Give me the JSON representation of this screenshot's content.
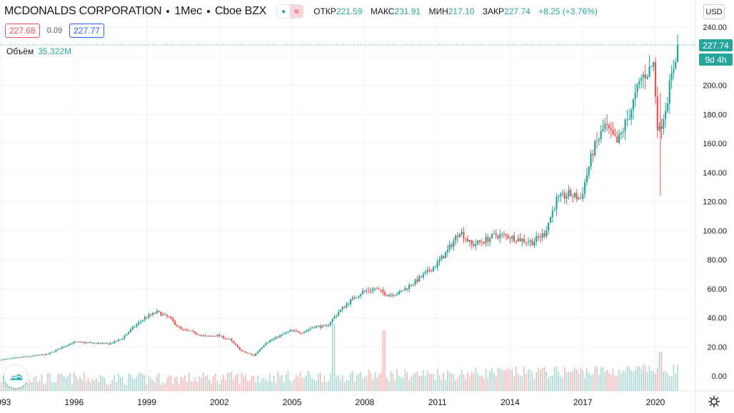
{
  "header": {
    "symbol": "MCDONALDS CORPORATION",
    "interval": "1Мес",
    "exchange": "Cboe BZX",
    "indicator_icons": [
      "dot-icon",
      "wave-icon"
    ],
    "ohlc": {
      "open_label": "ОТКР",
      "open": "221.59",
      "high_label": "МАКС",
      "high": "231.91",
      "low_label": "МИН",
      "low": "217.10",
      "close_label": "ЗАКР",
      "close": "227.74",
      "change": "+8.25 (+3.76%)"
    }
  },
  "quote": {
    "bid": "227.68",
    "spread": "0.09",
    "ask": "227.77"
  },
  "volume": {
    "label": "Объём",
    "value": "35.322M"
  },
  "axis": {
    "currency": "USD",
    "last_price": "227.74",
    "countdown": "9d 4h"
  },
  "colors": {
    "up": "#26a69a",
    "down": "#ef5350",
    "vol_up": "#a9d8d3",
    "vol_down": "#f6b7b6",
    "grid": "#f0f3fa",
    "text": "#131722"
  },
  "chart_data": {
    "type": "candlestick",
    "x_ticks": [
      "1993",
      "1996",
      "1999",
      "2002",
      "2005",
      "2008",
      "2011",
      "2014",
      "2017",
      "2020"
    ],
    "y_ticks": [
      "240.00",
      "220.00",
      "200.00",
      "180.00",
      "160.00",
      "140.00",
      "120.00",
      "100.00",
      "80.00",
      "60.00",
      "40.00",
      "20.00",
      "0.00"
    ],
    "ylim": [
      0,
      240
    ],
    "xlim": [
      1993.0,
      2021.0
    ],
    "price_path": [
      [
        1993.0,
        11
      ],
      [
        1994.0,
        13
      ],
      [
        1995.0,
        15
      ],
      [
        1996.0,
        23
      ],
      [
        1996.5,
        23
      ],
      [
        1997.5,
        22
      ],
      [
        1998.0,
        25
      ],
      [
        1998.5,
        33
      ],
      [
        1999.0,
        40
      ],
      [
        1999.5,
        44
      ],
      [
        2000.0,
        40
      ],
      [
        2000.5,
        32
      ],
      [
        2001.0,
        30
      ],
      [
        2001.5,
        27
      ],
      [
        2002.0,
        28
      ],
      [
        2002.5,
        25
      ],
      [
        2003.0,
        17
      ],
      [
        2003.5,
        14
      ],
      [
        2004.0,
        23
      ],
      [
        2004.5,
        27
      ],
      [
        2005.0,
        31
      ],
      [
        2005.5,
        30
      ],
      [
        2006.0,
        34
      ],
      [
        2006.5,
        34
      ],
      [
        2007.0,
        44
      ],
      [
        2007.5,
        52
      ],
      [
        2008.0,
        58
      ],
      [
        2008.5,
        60
      ],
      [
        2009.0,
        56
      ],
      [
        2009.5,
        57
      ],
      [
        2010.0,
        63
      ],
      [
        2010.5,
        69
      ],
      [
        2011.0,
        76
      ],
      [
        2011.5,
        86
      ],
      [
        2012.0,
        100
      ],
      [
        2012.5,
        90
      ],
      [
        2013.0,
        93
      ],
      [
        2013.5,
        97
      ],
      [
        2014.0,
        96
      ],
      [
        2014.5,
        94
      ],
      [
        2015.0,
        92
      ],
      [
        2015.5,
        98
      ],
      [
        2016.0,
        121
      ],
      [
        2016.5,
        125
      ],
      [
        2017.0,
        122
      ],
      [
        2017.5,
        155
      ],
      [
        2018.0,
        172
      ],
      [
        2018.5,
        160
      ],
      [
        2019.0,
        180
      ],
      [
        2019.5,
        205
      ],
      [
        2019.8,
        210
      ],
      [
        2020.0,
        215
      ],
      [
        2020.2,
        165
      ],
      [
        2020.5,
        185
      ],
      [
        2020.8,
        210
      ],
      [
        2021.0,
        227.74
      ]
    ],
    "volume_note": "volume histogram drawn along bottom"
  }
}
